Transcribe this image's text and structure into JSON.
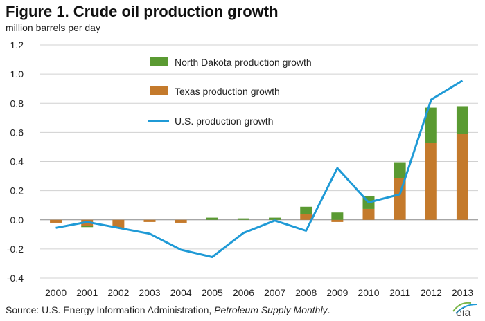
{
  "title": "Figure 1. Crude oil production growth",
  "unit_label": "million barrels per day",
  "source_prefix": "Source: U.S. Energy Information Administration, ",
  "source_publication": "Petroleum Supply Monthly",
  "source_suffix": ".",
  "logo_text": "eia",
  "colors": {
    "north_dakota": "#5a9a32",
    "texas": "#c47a2c",
    "us": "#1f9ad6",
    "gridline": "#d0d0d0",
    "axis": "#888888"
  },
  "chart_data": {
    "type": "bar",
    "categories": [
      "2000",
      "2001",
      "2002",
      "2003",
      "2004",
      "2005",
      "2006",
      "2007",
      "2008",
      "2009",
      "2010",
      "2011",
      "2012",
      "2013"
    ],
    "ylim": [
      -0.4,
      1.2
    ],
    "yticks": [
      "-0.4",
      "-0.2",
      "0.0",
      "0.2",
      "0.4",
      "0.6",
      "0.8",
      "1.0",
      "1.2"
    ],
    "grid": true,
    "legend_position": "top-center",
    "series": [
      {
        "name": "North Dakota production growth",
        "kind": "stacked-bar",
        "values": [
          0.0,
          -0.01,
          0.0,
          0.0,
          0.0,
          0.015,
          0.01,
          0.015,
          0.05,
          0.05,
          0.09,
          0.11,
          0.24,
          0.19
        ]
      },
      {
        "name": "Texas production growth",
        "kind": "stacked-bar",
        "values": [
          -0.02,
          -0.04,
          -0.055,
          -0.015,
          -0.02,
          0.0,
          0.0,
          0.0,
          0.04,
          -0.015,
          0.075,
          0.285,
          0.53,
          0.59
        ]
      },
      {
        "name": "U.S. production growth",
        "kind": "line",
        "values": [
          -0.055,
          -0.015,
          -0.055,
          -0.095,
          -0.205,
          -0.255,
          -0.09,
          -0.005,
          -0.075,
          0.355,
          0.12,
          0.175,
          0.825,
          0.955
        ]
      }
    ]
  }
}
